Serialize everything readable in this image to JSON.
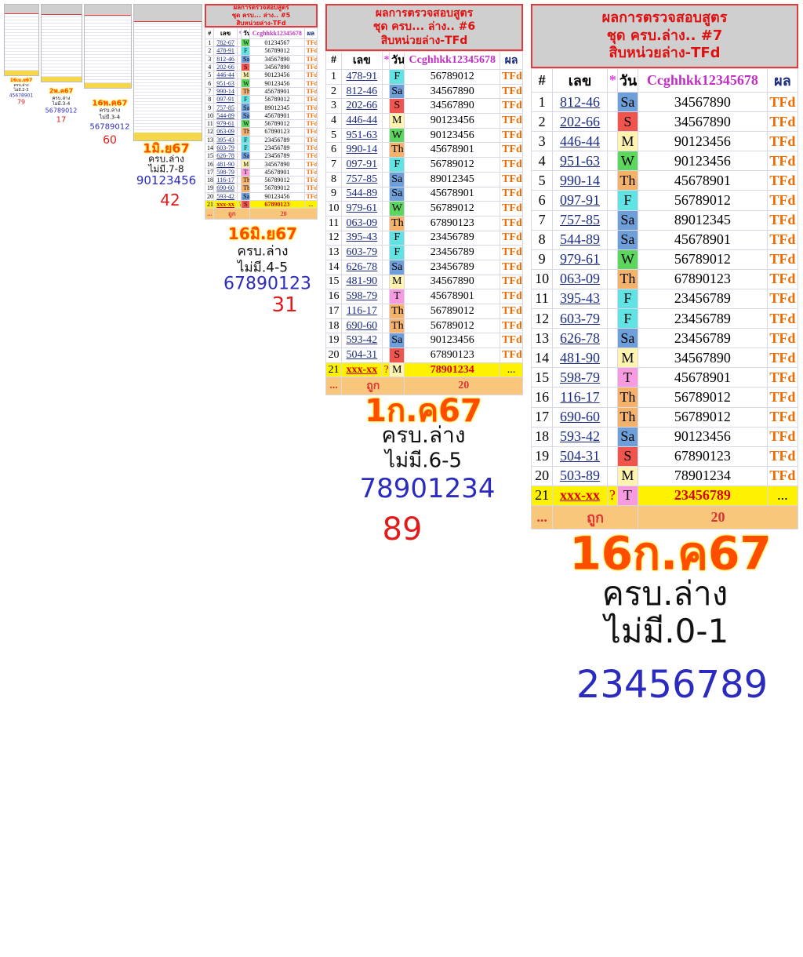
{
  "panels": [
    {
      "caption": [
        "16เม.ย67",
        "ครบ.ล่าง",
        "ไม่มี.2-3",
        "45678901",
        "79"
      ]
    },
    {
      "caption": [
        "2พ.ค67",
        "ครบ.ล่าง",
        "ไม่มี.3-4",
        "56789012",
        "17"
      ]
    },
    {
      "caption": [
        "16พ.ค67",
        "ครบ.ล่าง",
        "ไม่มี.3-4",
        "56789012",
        "60"
      ]
    },
    {
      "caption": [
        "1มิ.ย67",
        "ครบ.ล่าง",
        "ไม่มี.7-8",
        "90123456",
        "42"
      ]
    },
    {
      "title": [
        "ผลการตรวจสอบสูตร",
        "ชุด ครบ... ล่าง.. #5",
        "สิบหน่วยล่าง-TFd"
      ],
      "headers": [
        "#",
        "เลข",
        "*",
        "วัน",
        "Ccghhkk12345678",
        "ผล"
      ],
      "rows": [
        {
          "n": 1,
          "num": "782-67",
          "day": "W",
          "digits": "01234567",
          "result": "TFd"
        },
        {
          "n": 2,
          "num": "478-91",
          "day": "F",
          "digits": "56789012",
          "result": "TFd"
        },
        {
          "n": 3,
          "num": "812-46",
          "day": "Sa",
          "digits": "34567890",
          "result": "TFd"
        },
        {
          "n": 4,
          "num": "202-66",
          "day": "S",
          "digits": "34567890",
          "result": "TFd"
        },
        {
          "n": 5,
          "num": "446-44",
          "day": "M",
          "digits": "90123456",
          "result": "TFd"
        },
        {
          "n": 6,
          "num": "951-63",
          "day": "W",
          "digits": "90123456",
          "result": "TFd"
        },
        {
          "n": 7,
          "num": "990-14",
          "day": "Th",
          "digits": "45678901",
          "result": "TFd"
        },
        {
          "n": 8,
          "num": "097-91",
          "day": "F",
          "digits": "56789012",
          "result": "TFd"
        },
        {
          "n": 9,
          "num": "757-85",
          "day": "Sa",
          "digits": "89012345",
          "result": "TFd"
        },
        {
          "n": 10,
          "num": "544-89",
          "day": "Sa",
          "digits": "45678901",
          "result": "TFd"
        },
        {
          "n": 11,
          "num": "979-61",
          "day": "W",
          "digits": "56789012",
          "result": "TFd"
        },
        {
          "n": 12,
          "num": "063-09",
          "day": "Th",
          "digits": "67890123",
          "result": "TFd"
        },
        {
          "n": 13,
          "num": "395-43",
          "day": "F",
          "digits": "23456789",
          "result": "TFd"
        },
        {
          "n": 14,
          "num": "603-79",
          "day": "F",
          "digits": "23456789",
          "result": "TFd"
        },
        {
          "n": 15,
          "num": "626-78",
          "day": "Sa",
          "digits": "23456789",
          "result": "TFd"
        },
        {
          "n": 16,
          "num": "481-90",
          "day": "M",
          "digits": "34567890",
          "result": "TFd"
        },
        {
          "n": 17,
          "num": "598-79",
          "day": "T",
          "digits": "45678901",
          "result": "TFd"
        },
        {
          "n": 18,
          "num": "116-17",
          "day": "Th",
          "digits": "56789012",
          "result": "TFd"
        },
        {
          "n": 19,
          "num": "690-60",
          "day": "Th",
          "digits": "56789012",
          "result": "TFd"
        },
        {
          "n": 20,
          "num": "593-42",
          "day": "Sa",
          "digits": "90123456",
          "result": "TFd"
        },
        {
          "n": 21,
          "num": "xxx-xx",
          "mark": "?",
          "day": "S",
          "digits": "67890123",
          "result": "..."
        }
      ],
      "footer": {
        "dots": "...",
        "label": "ถูก",
        "count": 20
      },
      "caption": [
        "16มิ.ย67",
        "ครบ.ล่าง",
        "ไม่มี.4-5",
        "67890123",
        "31"
      ]
    },
    {
      "title": [
        "ผลการตรวจสอบสูตร",
        "ชุด ครบ... ล่าง.. #6",
        "สิบหน่วยล่าง-TFd"
      ],
      "headers": [
        "#",
        "เลข",
        "*",
        "วัน",
        "Ccghhkk12345678",
        "ผล"
      ],
      "rows": [
        {
          "n": 1,
          "num": "478-91",
          "day": "F",
          "digits": "56789012",
          "result": "TFd"
        },
        {
          "n": 2,
          "num": "812-46",
          "day": "Sa",
          "digits": "34567890",
          "result": "TFd"
        },
        {
          "n": 3,
          "num": "202-66",
          "day": "S",
          "digits": "34567890",
          "result": "TFd"
        },
        {
          "n": 4,
          "num": "446-44",
          "day": "M",
          "digits": "90123456",
          "result": "TFd"
        },
        {
          "n": 5,
          "num": "951-63",
          "day": "W",
          "digits": "90123456",
          "result": "TFd"
        },
        {
          "n": 6,
          "num": "990-14",
          "day": "Th",
          "digits": "45678901",
          "result": "TFd"
        },
        {
          "n": 7,
          "num": "097-91",
          "day": "F",
          "digits": "56789012",
          "result": "TFd"
        },
        {
          "n": 8,
          "num": "757-85",
          "day": "Sa",
          "digits": "89012345",
          "result": "TFd"
        },
        {
          "n": 9,
          "num": "544-89",
          "day": "Sa",
          "digits": "45678901",
          "result": "TFd"
        },
        {
          "n": 10,
          "num": "979-61",
          "day": "W",
          "digits": "56789012",
          "result": "TFd"
        },
        {
          "n": 11,
          "num": "063-09",
          "day": "Th",
          "digits": "67890123",
          "result": "TFd"
        },
        {
          "n": 12,
          "num": "395-43",
          "day": "F",
          "digits": "23456789",
          "result": "TFd"
        },
        {
          "n": 13,
          "num": "603-79",
          "day": "F",
          "digits": "23456789",
          "result": "TFd"
        },
        {
          "n": 14,
          "num": "626-78",
          "day": "Sa",
          "digits": "23456789",
          "result": "TFd"
        },
        {
          "n": 15,
          "num": "481-90",
          "day": "M",
          "digits": "34567890",
          "result": "TFd"
        },
        {
          "n": 16,
          "num": "598-79",
          "day": "T",
          "digits": "45678901",
          "result": "TFd"
        },
        {
          "n": 17,
          "num": "116-17",
          "day": "Th",
          "digits": "56789012",
          "result": "TFd"
        },
        {
          "n": 18,
          "num": "690-60",
          "day": "Th",
          "digits": "56789012",
          "result": "TFd"
        },
        {
          "n": 19,
          "num": "593-42",
          "day": "Sa",
          "digits": "90123456",
          "result": "TFd"
        },
        {
          "n": 20,
          "num": "504-31",
          "day": "S",
          "digits": "67890123",
          "result": "TFd"
        },
        {
          "n": 21,
          "num": "xxx-xx",
          "mark": "?",
          "day": "M",
          "digits": "78901234",
          "result": "..."
        }
      ],
      "footer": {
        "dots": "...",
        "label": "ถูก",
        "count": 20
      },
      "caption": [
        "1ก.ค67",
        "ครบ.ล่าง",
        "ไม่มี.6-5",
        "78901234",
        "89"
      ]
    },
    {
      "title": [
        "ผลการตรวจสอบสูตร",
        "ชุด ครบ.ล่าง.. #7",
        "สิบหน่วยล่าง-TFd"
      ],
      "headers": [
        "#",
        "เลข",
        "*",
        "วัน",
        "Ccghhkk12345678",
        "ผล"
      ],
      "rows": [
        {
          "n": 1,
          "num": "812-46",
          "day": "Sa",
          "digits": "34567890",
          "result": "TFd"
        },
        {
          "n": 2,
          "num": "202-66",
          "day": "S",
          "digits": "34567890",
          "result": "TFd"
        },
        {
          "n": 3,
          "num": "446-44",
          "day": "M",
          "digits": "90123456",
          "result": "TFd"
        },
        {
          "n": 4,
          "num": "951-63",
          "day": "W",
          "digits": "90123456",
          "result": "TFd"
        },
        {
          "n": 5,
          "num": "990-14",
          "day": "Th",
          "digits": "45678901",
          "result": "TFd"
        },
        {
          "n": 6,
          "num": "097-91",
          "day": "F",
          "digits": "56789012",
          "result": "TFd"
        },
        {
          "n": 7,
          "num": "757-85",
          "day": "Sa",
          "digits": "89012345",
          "result": "TFd"
        },
        {
          "n": 8,
          "num": "544-89",
          "day": "Sa",
          "digits": "45678901",
          "result": "TFd"
        },
        {
          "n": 9,
          "num": "979-61",
          "day": "W",
          "digits": "56789012",
          "result": "TFd"
        },
        {
          "n": 10,
          "num": "063-09",
          "day": "Th",
          "digits": "67890123",
          "result": "TFd"
        },
        {
          "n": 11,
          "num": "395-43",
          "day": "F",
          "digits": "23456789",
          "result": "TFd"
        },
        {
          "n": 12,
          "num": "603-79",
          "day": "F",
          "digits": "23456789",
          "result": "TFd"
        },
        {
          "n": 13,
          "num": "626-78",
          "day": "Sa",
          "digits": "23456789",
          "result": "TFd"
        },
        {
          "n": 14,
          "num": "481-90",
          "day": "M",
          "digits": "34567890",
          "result": "TFd"
        },
        {
          "n": 15,
          "num": "598-79",
          "day": "T",
          "digits": "45678901",
          "result": "TFd"
        },
        {
          "n": 16,
          "num": "116-17",
          "day": "Th",
          "digits": "56789012",
          "result": "TFd"
        },
        {
          "n": 17,
          "num": "690-60",
          "day": "Th",
          "digits": "56789012",
          "result": "TFd"
        },
        {
          "n": 18,
          "num": "593-42",
          "day": "Sa",
          "digits": "90123456",
          "result": "TFd"
        },
        {
          "n": 19,
          "num": "504-31",
          "day": "S",
          "digits": "67890123",
          "result": "TFd"
        },
        {
          "n": 20,
          "num": "503-89",
          "day": "M",
          "digits": "78901234",
          "result": "TFd"
        },
        {
          "n": 21,
          "num": "xxx-xx",
          "mark": "?",
          "day": "T",
          "digits": "23456789",
          "result": "..."
        }
      ],
      "footer": {
        "dots": "...",
        "label": "ถูก",
        "count": 20
      },
      "caption": [
        "16ก.ค67",
        "ครบ.ล่าง",
        "ไม่มี.0-1",
        "23456789"
      ]
    }
  ],
  "day_colors": {
    "F": "#62e3e3",
    "Sa": "#6f9fd8",
    "S": "#f0554d",
    "M": "#fff3b0",
    "W": "#5cd65c",
    "Th": "#f5b26b",
    "T": "#f79be0"
  }
}
